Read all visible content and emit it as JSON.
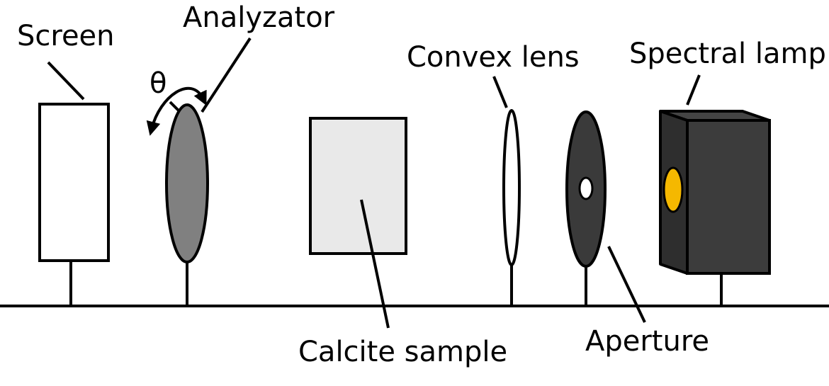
{
  "labels": {
    "screen": "Screen",
    "analyzator": "Analyzator",
    "theta": "θ",
    "convex_lens": "Convex lens",
    "spectral_lamp": "Spectral lamp",
    "calcite_sample": "Calcite sample",
    "aperture": "Aperture"
  },
  "colors": {
    "line": "#000000",
    "screen_fill": "#ffffff",
    "analyzer_fill": "#808080",
    "calcite_fill": "#e9e9e9",
    "aperture_fill": "#3a3a3a",
    "lamp_front": "#3c3c3c",
    "lamp_side": "#2e2e2e",
    "lamp_top": "#444444",
    "lamp_window": "#f5b800"
  }
}
